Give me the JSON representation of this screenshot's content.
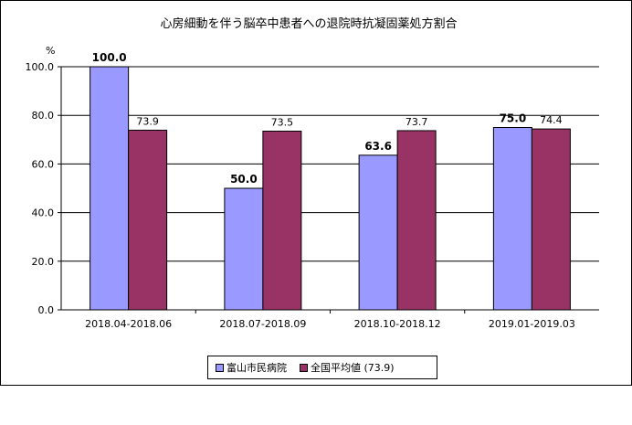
{
  "chart_data": {
    "type": "bar",
    "title": "心房細動を伴う脳卒中患者への退院時抗凝固薬処方割合",
    "ylabel": "%",
    "xlabel": "",
    "ylim": [
      0,
      100
    ],
    "yticks": [
      "0.0",
      "20.0",
      "40.0",
      "60.0",
      "80.0",
      "100.0"
    ],
    "categories": [
      "2018.04-2018.06",
      "2018.07-2018.09",
      "2018.10-2018.12",
      "2019.01-2019.03"
    ],
    "series": [
      {
        "name": "富山市民病院",
        "values": [
          100.0,
          50.0,
          63.6,
          75.0
        ],
        "labels": [
          "100.0",
          "50.0",
          "63.6",
          "75.0"
        ],
        "color": "#9999FF"
      },
      {
        "name": "全国平均値 (73.9)",
        "values": [
          73.9,
          73.5,
          73.7,
          74.4
        ],
        "labels": [
          "73.9",
          "73.5",
          "73.7",
          "74.4"
        ],
        "color": "#993366"
      }
    ],
    "grid": true,
    "legend_position": "bottom"
  }
}
